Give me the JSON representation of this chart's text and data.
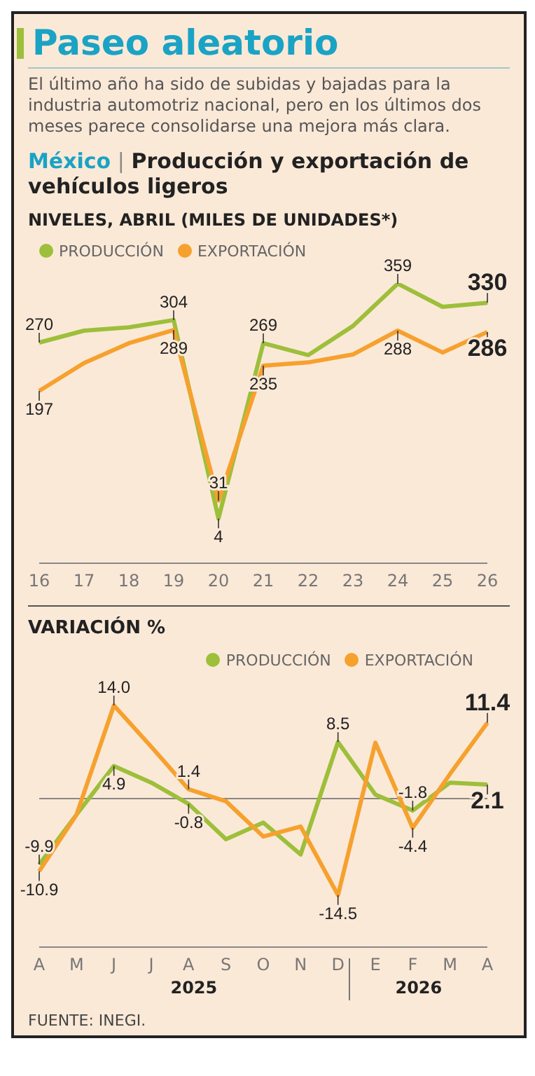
{
  "chart_data": [
    {
      "type": "line",
      "title": "Paseo aleatorio",
      "subtitle": "El último año ha sido de subidas y bajadas para la industria automotriz nacional, pero en los últimos dos meses parece consolidarse una mejora más clara.",
      "annotations": [
        "México",
        "|",
        "Producción y exportación de vehículos ligeros"
      ],
      "ylabel": "NIVELES, ABRIL (MILES DE UNIDADES*)",
      "categories": [
        "16",
        "17",
        "18",
        "19",
        "20",
        "21",
        "22",
        "23",
        "24",
        "25",
        "26"
      ],
      "series": [
        {
          "name": "PRODUCCIÓN",
          "color": "#9dbf3a",
          "values": [
            270,
            288,
            293,
            304,
            4,
            269,
            251,
            295,
            359,
            324,
            330
          ],
          "value_labels": [
            "270",
            null,
            null,
            "304",
            "4",
            "269",
            null,
            null,
            "359",
            null,
            "330"
          ]
        },
        {
          "name": "EXPORTACIÓN",
          "color": "#f6a12e",
          "values": [
            197,
            239,
            269,
            289,
            31,
            235,
            240,
            252,
            288,
            255,
            286
          ],
          "value_labels": [
            "197",
            null,
            null,
            "289",
            "31",
            "235",
            null,
            null,
            "288",
            null,
            "286"
          ]
        }
      ],
      "tick_labels": "x",
      "legend": "top left",
      "grid": false
    },
    {
      "type": "line",
      "title": "VARIACIÓN %",
      "annotations": [
        "2025",
        "2026",
        "FUENTE: INEGI."
      ],
      "categories": [
        "A",
        "M",
        "J",
        "J",
        "A",
        "S",
        "O",
        "N",
        "D",
        "E",
        "F",
        "M",
        "A"
      ],
      "series": [
        {
          "name": "PRODUCCIÓN",
          "color": "#9dbf3a",
          "values": [
            -9.9,
            -2.4,
            4.9,
            2.4,
            -0.8,
            -6.1,
            -3.6,
            -8.4,
            8.5,
            0.6,
            -1.8,
            2.4,
            2.1
          ],
          "value_labels": [
            "-9.9",
            null,
            "4.9",
            null,
            "-0.8",
            null,
            null,
            null,
            "8.5",
            null,
            "-1.8",
            null,
            "2.1"
          ]
        },
        {
          "name": "EXPORTACIÓN",
          "color": "#f6a12e",
          "values": [
            -10.9,
            -2.4,
            14.0,
            7.8,
            1.4,
            -0.4,
            -5.7,
            -4.2,
            -14.5,
            8.4,
            -4.4,
            3.7,
            11.4
          ],
          "value_labels": [
            "-10.9",
            null,
            "14.0",
            null,
            "1.4",
            null,
            null,
            null,
            "-14.5",
            null,
            "-4.4",
            null,
            "11.4"
          ]
        }
      ],
      "tick_labels": "x",
      "legend": "top right",
      "grid": false,
      "ref_lines": [
        {
          "axis": "y",
          "value": 0,
          "color": "#8a8580"
        }
      ]
    }
  ]
}
